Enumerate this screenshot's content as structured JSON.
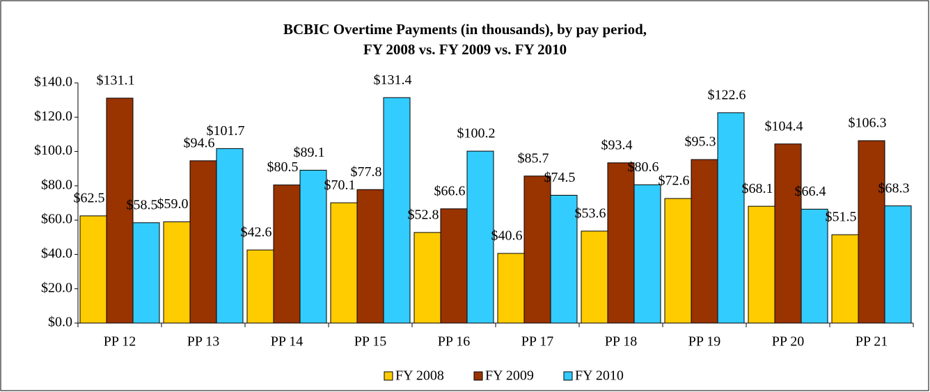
{
  "chart_data": {
    "type": "bar",
    "title": [
      "BCBIC Overtime Payments (in thousands), by pay period,",
      "FY 2008 vs. FY 2009 vs. FY 2010"
    ],
    "categories": [
      "PP 12",
      "PP 13",
      "PP 14",
      "PP 15",
      "PP 16",
      "PP 17",
      "PP 18",
      "PP 19",
      "PP 20",
      "PP 21"
    ],
    "series": [
      {
        "name": "FY 2008",
        "color": "#FFCC00",
        "values": [
          62.5,
          59.0,
          42.6,
          70.1,
          52.8,
          40.6,
          53.6,
          72.6,
          68.1,
          51.5
        ],
        "value_labels": [
          "$62.5",
          "$59.0",
          "$42.6",
          "$70.1",
          "$52.8",
          "$40.6",
          "$53.6",
          "$72.6",
          "$68.1",
          "$51.5"
        ]
      },
      {
        "name": "FY 2009",
        "color": "#993300",
        "values": [
          131.1,
          94.6,
          80.5,
          77.8,
          66.6,
          85.7,
          93.4,
          95.3,
          104.4,
          106.3
        ],
        "value_labels": [
          "$131.1",
          "$94.6",
          "$80.5",
          "$77.8",
          "$66.6",
          "$85.7",
          "$93.4",
          "$95.3",
          "$104.4",
          "$106.3"
        ]
      },
      {
        "name": "FY 2010",
        "color": "#33CCFF",
        "values": [
          58.5,
          101.7,
          89.1,
          131.4,
          100.2,
          74.5,
          80.6,
          122.6,
          66.4,
          68.3
        ],
        "value_labels": [
          "$58.5",
          "$101.7",
          "$89.1",
          "$131.4",
          "$100.2",
          "$74.5",
          "$80.6",
          "$122.6",
          "$66.4",
          "$68.3"
        ]
      }
    ],
    "ylim": [
      0,
      140
    ],
    "yticks": [
      {
        "value": 0,
        "label": "$0.0"
      },
      {
        "value": 20,
        "label": "$20.0"
      },
      {
        "value": 40,
        "label": "$40.0"
      },
      {
        "value": 60,
        "label": "$60.0"
      },
      {
        "value": 80,
        "label": "$80.0"
      },
      {
        "value": 100,
        "label": "$100.0"
      },
      {
        "value": 120,
        "label": "$120.0"
      },
      {
        "value": 140,
        "label": "$140.0"
      }
    ],
    "legend": "bottom"
  }
}
